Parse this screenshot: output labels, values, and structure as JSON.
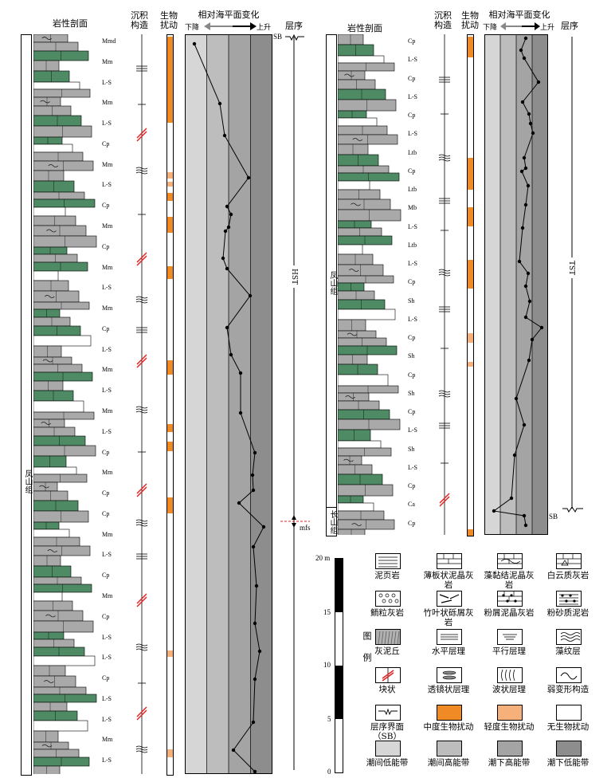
{
  "headers": {
    "lithology": "岩性剖面",
    "structure": "沉积构造",
    "bio": "生物扰动",
    "sea_level": "相对海平面变化",
    "falling": "下降",
    "rising": "上升",
    "sequence": "层序"
  },
  "left": {
    "formation": "凤山组",
    "system_tract": "HST",
    "sb": "SB",
    "mfs": "mfs",
    "labels": [
      "Mmd",
      "Mm",
      "L-S",
      "Mm",
      "L-S",
      "Cp",
      "Mm",
      "L-S",
      "Cp",
      "Mm",
      "Cp",
      "Mm",
      "L-S",
      "Mm",
      "Cp",
      "L-S",
      "Mm",
      "L-S",
      "Mm",
      "L-S",
      "Cp",
      "Mm",
      "Cp",
      "Cp",
      "Mm",
      "L-S",
      "Cp",
      "Mm",
      "Cp",
      "L-S",
      "L-S",
      "Cp",
      "L-S",
      "L-S",
      "Mm",
      "L-S"
    ]
  },
  "right": {
    "formation_upper": "凤山组",
    "formation_lower": "长山组",
    "system_tract": "TST",
    "sb": "SB",
    "labels": [
      "Cp",
      "L-S",
      "Cp",
      "L-S",
      "Cp",
      "L-S",
      "Ltb",
      "Cp",
      "Ltb",
      "Mb",
      "L-S",
      "Ltb",
      "L-S",
      "Cp",
      "Sh",
      "L-S",
      "Cp",
      "Sh",
      "Cp",
      "Sh",
      "Cp",
      "L-S",
      "Sh",
      "L-S",
      "Cp",
      "Ca",
      "Cp"
    ]
  },
  "scale": {
    "ticks": [
      "20 m",
      "15",
      "10",
      "5",
      "0"
    ]
  },
  "legend": {
    "title": "图例",
    "items": [
      {
        "label": "泥页岩"
      },
      {
        "label": "薄板状泥晶灰岩"
      },
      {
        "label": "藻黏结泥晶灰岩"
      },
      {
        "label": "白云质灰岩"
      },
      {
        "label": "鲕粒灰岩"
      },
      {
        "label": "竹叶状砾屑灰岩"
      },
      {
        "label": "粉屑泥晶灰岩"
      },
      {
        "label": "粉砂质泥岩"
      },
      {
        "label": "灰泥丘"
      },
      {
        "label": "水平层理"
      },
      {
        "label": "平行层理"
      },
      {
        "label": "藻纹层"
      },
      {
        "label": "块状"
      },
      {
        "label": "透镜状层理"
      },
      {
        "label": "波状层理"
      },
      {
        "label": "弱变形构造"
      },
      {
        "label": "层序界面（SB）"
      },
      {
        "label": "中度生物扰动"
      },
      {
        "label": "轻度生物扰动"
      },
      {
        "label": "无生物扰动"
      },
      {
        "label": "潮间低能带"
      },
      {
        "label": "潮间高能带"
      },
      {
        "label": "潮下高能带"
      },
      {
        "label": "潮下低能带"
      }
    ]
  },
  "colors": {
    "zone1": "#d6d6d6",
    "zone2": "#bdbdbd",
    "zone3": "#a4a4a4",
    "zone4": "#8d8d8d",
    "moderate_bio": "#f08a24",
    "light_bio": "#f6b07a",
    "green": "#4e8a63",
    "rock": "#a9a9a9"
  }
}
